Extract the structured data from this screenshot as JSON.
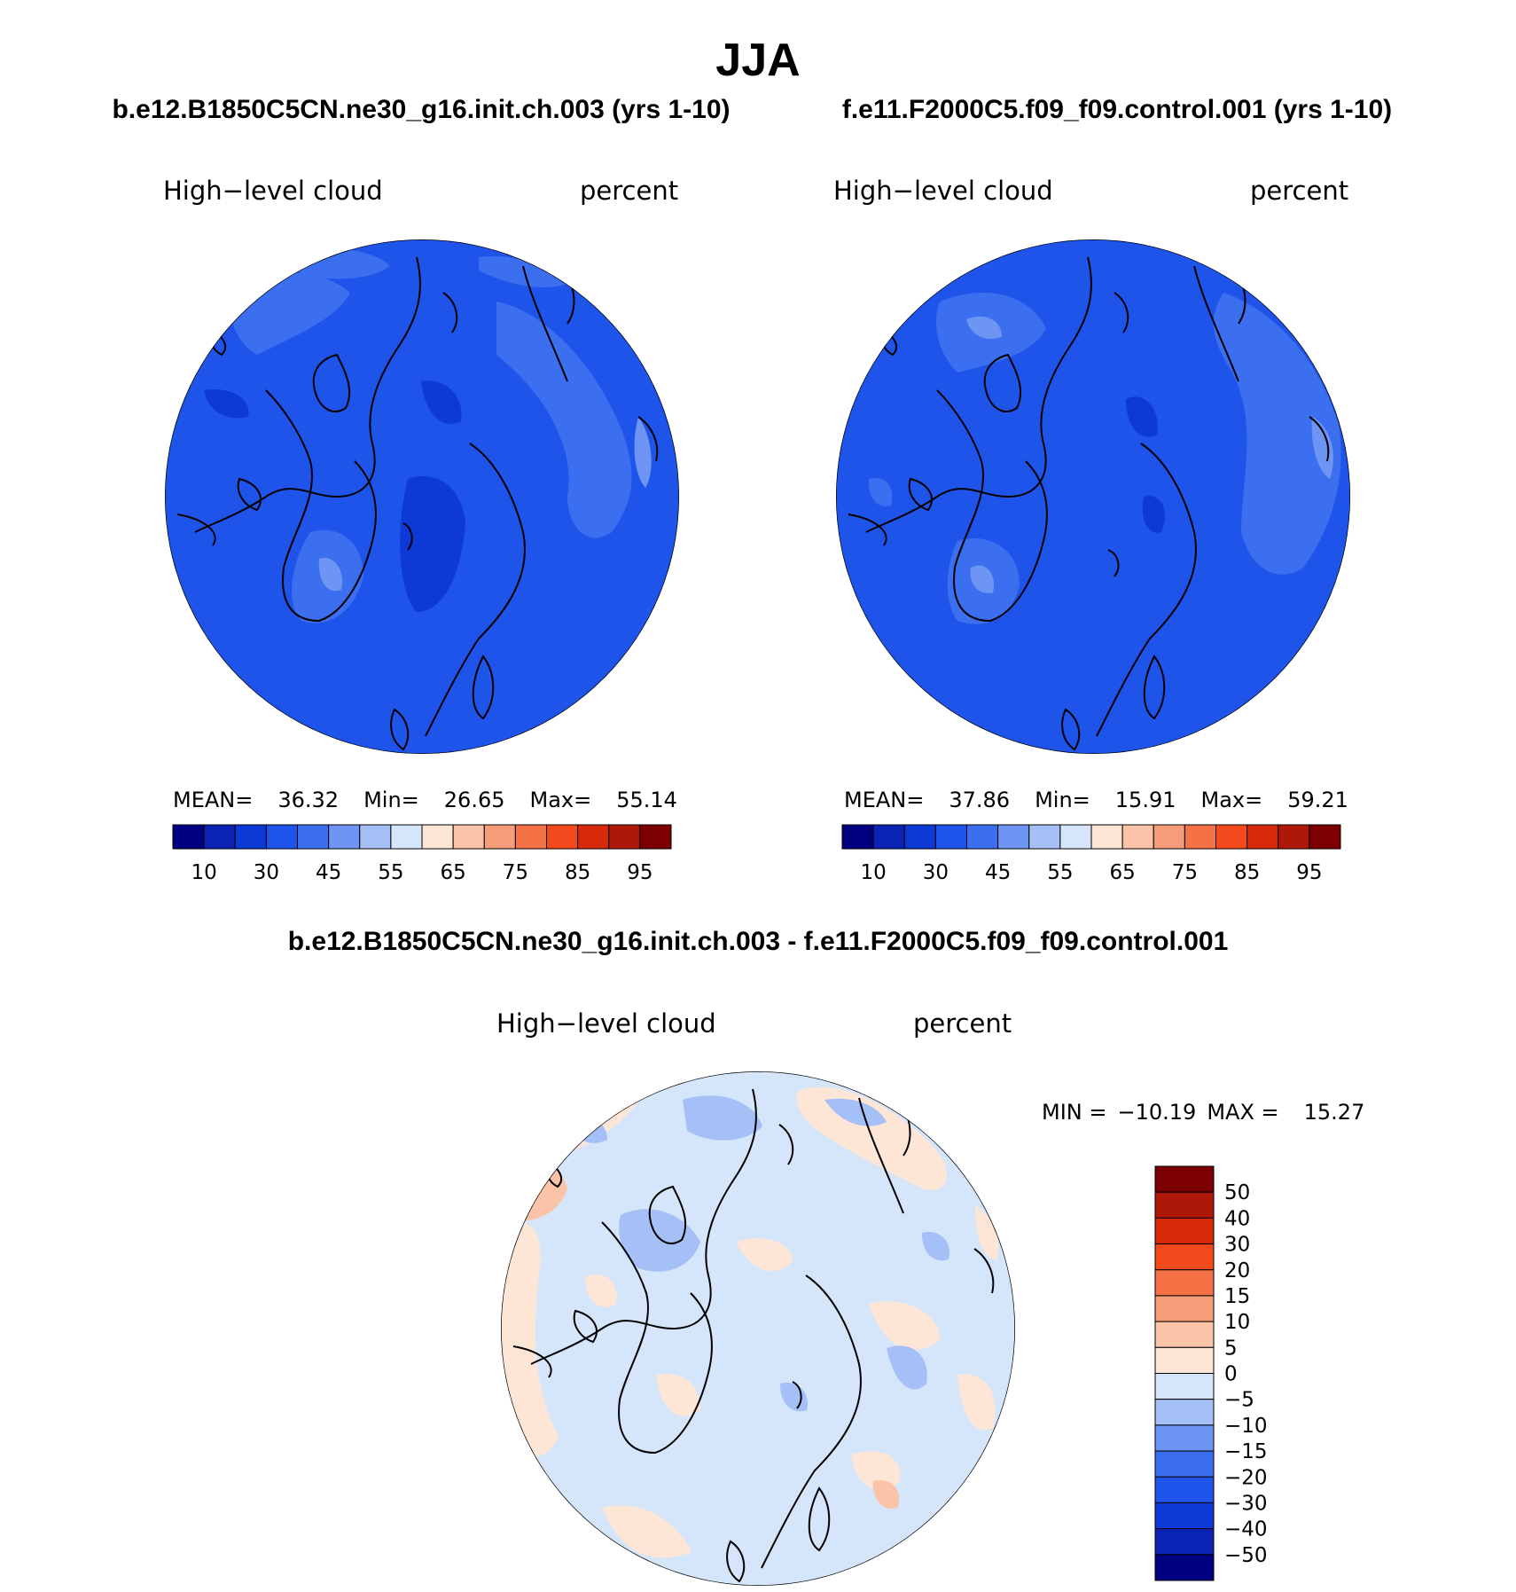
{
  "title": "JJA",
  "panels": [
    {
      "case_title": "b.e12.B1850C5CN.ne30_g16.init.ch.003 (yrs 1-10)",
      "variable": "High−level cloud",
      "units": "percent",
      "mean_label": "MEAN=",
      "mean": "36.32",
      "min_label": "Min=",
      "min": "26.65",
      "max_label": "Max=",
      "max": "55.14"
    },
    {
      "case_title": "f.e11.F2000C5.f09_f09.control.001 (yrs 1-10)",
      "variable": "High−level cloud",
      "units": "percent",
      "mean_label": "MEAN=",
      "mean": "37.86",
      "min_label": "Min=",
      "min": "15.91",
      "max_label": "Max=",
      "max": "59.21"
    }
  ],
  "difference": {
    "title": "b.e12.B1850C5CN.ne30_g16.init.ch.003 - f.e11.F2000C5.f09_f09.control.001",
    "variable": "High−level cloud",
    "units": "percent",
    "min_label": "MIN =",
    "min": "−10.19",
    "max_label": "MAX =",
    "max": "15.27"
  },
  "abs_colorbar": {
    "colors": [
      "#000080",
      "#0a23b5",
      "#0d39d6",
      "#1e54ea",
      "#3b6ff0",
      "#6e95f3",
      "#a5bff7",
      "#d5e5fa",
      "#fde6d6",
      "#fbc4a8",
      "#f59c78",
      "#f47246",
      "#f24a1c",
      "#d62a0a",
      "#ae1808",
      "#7c0002"
    ],
    "labels": [
      "10",
      "30",
      "45",
      "55",
      "65",
      "75",
      "85",
      "95"
    ]
  },
  "diff_colorbar": {
    "colors": [
      "#000080",
      "#0a23b5",
      "#0d39d6",
      "#1e54ea",
      "#3b6ff0",
      "#6e95f3",
      "#a5bff7",
      "#d5e5fa",
      "#fde6d6",
      "#fbc4a8",
      "#f59c78",
      "#f47246",
      "#f24a1c",
      "#d62a0a",
      "#ae1808",
      "#7c0002"
    ],
    "labels": [
      "50",
      "40",
      "30",
      "20",
      "15",
      "10",
      "5",
      "0",
      "−5",
      "−10",
      "−15",
      "−20",
      "−30",
      "−40",
      "−50"
    ]
  },
  "map_colors": {
    "abs_base": "#1e54ea",
    "abs_light": "#3b6ff0",
    "abs_lighter": "#6e95f3",
    "abs_dark": "#0d39d6",
    "diff_base": "#d5e5fa",
    "diff_warm": "#fde6d6",
    "diff_cool": "#a5bff7",
    "diff_warm2": "#fbc4a8",
    "coast": "#000000"
  }
}
